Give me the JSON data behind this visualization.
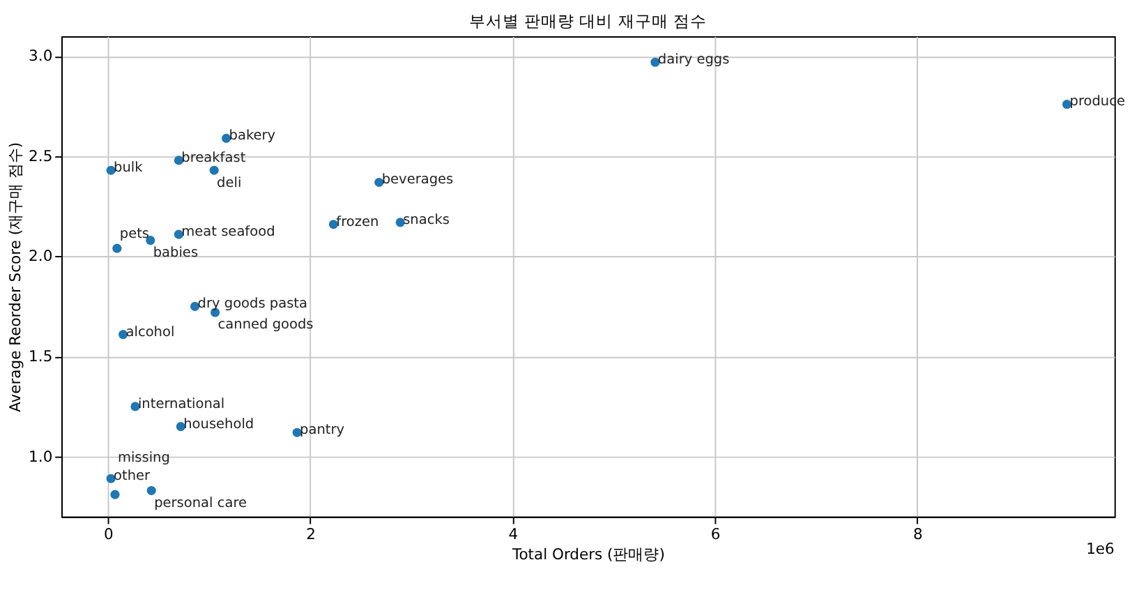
{
  "chart_data": {
    "type": "scatter",
    "title": "부서별 판매량 대비 재구매 점수",
    "xlabel": "Total Orders (판매량)",
    "ylabel": "Average Reorder Score (재구매 점수)",
    "x": [
      5.41,
      9.48,
      1.17,
      0.7,
      1.05,
      0.03,
      2.68,
      2.23,
      2.89,
      0.7,
      0.42,
      0.09,
      0.86,
      1.06,
      0.15,
      0.27,
      0.72,
      1.87,
      0.03,
      0.43,
      0.07
    ],
    "series": [
      {
        "color": "#1f77b4",
        "values": [
          2.97,
          2.76,
          2.59,
          2.48,
          2.43,
          2.43,
          2.37,
          2.16,
          2.17,
          2.11,
          2.08,
          2.04,
          1.75,
          1.72,
          1.61,
          1.25,
          1.15,
          1.12,
          0.89,
          0.83,
          0.81
        ]
      }
    ],
    "annotations": [
      {
        "text": "dairy eggs",
        "x": 5.41,
        "y": 2.97
      },
      {
        "text": "produce",
        "x": 9.48,
        "y": 2.76
      },
      {
        "text": "bakery",
        "x": 1.17,
        "y": 2.59
      },
      {
        "text": "breakfast",
        "x": 0.7,
        "y": 2.48
      },
      {
        "text": "deli",
        "x": 1.05,
        "y": 2.43
      },
      {
        "text": "bulk",
        "x": 0.03,
        "y": 2.43
      },
      {
        "text": "beverages",
        "x": 2.68,
        "y": 2.37
      },
      {
        "text": "frozen",
        "x": 2.23,
        "y": 2.16
      },
      {
        "text": "snacks",
        "x": 2.89,
        "y": 2.17
      },
      {
        "text": "meat seafood",
        "x": 0.7,
        "y": 2.11
      },
      {
        "text": "babies",
        "x": 0.42,
        "y": 2.08
      },
      {
        "text": "pets",
        "x": 0.09,
        "y": 2.04
      },
      {
        "text": "dry goods pasta",
        "x": 0.86,
        "y": 1.75
      },
      {
        "text": "canned goods",
        "x": 1.06,
        "y": 1.72
      },
      {
        "text": "alcohol",
        "x": 0.15,
        "y": 1.61
      },
      {
        "text": "international",
        "x": 0.27,
        "y": 1.25
      },
      {
        "text": "household",
        "x": 0.72,
        "y": 1.15
      },
      {
        "text": "pantry",
        "x": 1.87,
        "y": 1.12
      },
      {
        "text": "other",
        "x": 0.03,
        "y": 0.89
      },
      {
        "text": "personal care",
        "x": 0.43,
        "y": 0.83
      },
      {
        "text": "missing",
        "x": 0.07,
        "y": 0.81
      },
      "1e6"
    ],
    "xlim": [
      -0.46,
      9.95
    ],
    "ylim": [
      0.7,
      3.1
    ],
    "xticks": [
      0,
      2,
      4,
      6,
      8
    ],
    "yticks": [
      {
        "value": 1,
        "label": "1.0"
      },
      1.5,
      {
        "value": 2,
        "label": "2.0"
      },
      2.5,
      {
        "value": 3,
        "label": "3.0"
      }
    ],
    "grid": true,
    "marker": "circle"
  }
}
